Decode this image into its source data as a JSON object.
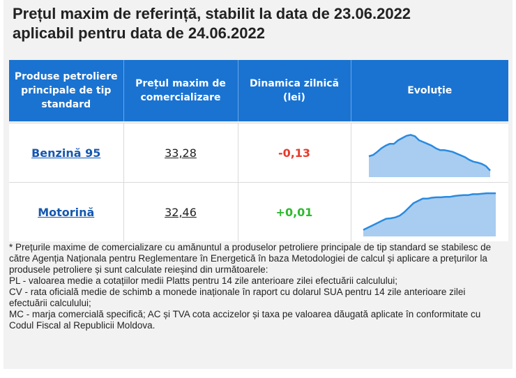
{
  "title_line1": "Prețul maxim de referință, stabilit la data de 23.06.2022",
  "title_line2": "aplicabil pentru data de 24.06.2022",
  "table": {
    "headers": [
      "Produse petroliere principale de tip standard",
      "Prețul maxim de comercializare",
      "Dinamica zilnică (lei)",
      "Evoluție"
    ],
    "rows": [
      {
        "product": "Benzină 95",
        "price": "33,28",
        "change": "-0,13",
        "trend": [
          0.42,
          0.45,
          0.52,
          0.6,
          0.66,
          0.7,
          0.7,
          0.78,
          0.83,
          0.88,
          0.9,
          0.87,
          0.78,
          0.74,
          0.7,
          0.66,
          0.6,
          0.56,
          0.56,
          0.54,
          0.52,
          0.48,
          0.44,
          0.4,
          0.34,
          0.3,
          0.28,
          0.25,
          0.2,
          0.1
        ]
      },
      {
        "product": "Motorină",
        "price": "32,46",
        "change": "+0,01",
        "trend": [
          0.1,
          0.15,
          0.2,
          0.25,
          0.3,
          0.35,
          0.36,
          0.38,
          0.42,
          0.5,
          0.6,
          0.7,
          0.75,
          0.8,
          0.8,
          0.82,
          0.83,
          0.83,
          0.84,
          0.84,
          0.86,
          0.87,
          0.88,
          0.88,
          0.9,
          0.9,
          0.91,
          0.92,
          0.92,
          0.92
        ]
      }
    ]
  },
  "notes": [
    "* Prețurile maxime de comercializare cu amănuntul a produselor petroliere principale de tip standard se stabilesc de către Agenția Naționala pentru Reglementare în Energetică în baza Metodologiei de calcul și aplicare a prețurilor la produsele petroliere și sunt calculate reieșind din următoarele:",
    "PL - valoarea medie a cotațiilor medii Platts pentru 14 zile anterioare zilei efectuării calculului;",
    "CV - rata oficială medie de schimb a monede inaționale în raport cu dolarul SUA pentru 14 zile anterioare zilei efectuării calculului;",
    "MC - marja comercială specifică; AC și TVA cota accizelor și taxa pe valoarea dăugată aplicate în conformitate cu Codul Fiscal al Republicii Moldova."
  ],
  "colors": {
    "header_bg": "#1a73d1",
    "spark_line": "#2a8ae0",
    "spark_fill": "#a9cdf0",
    "negative": "#e53b2c",
    "positive": "#2fb82f"
  }
}
